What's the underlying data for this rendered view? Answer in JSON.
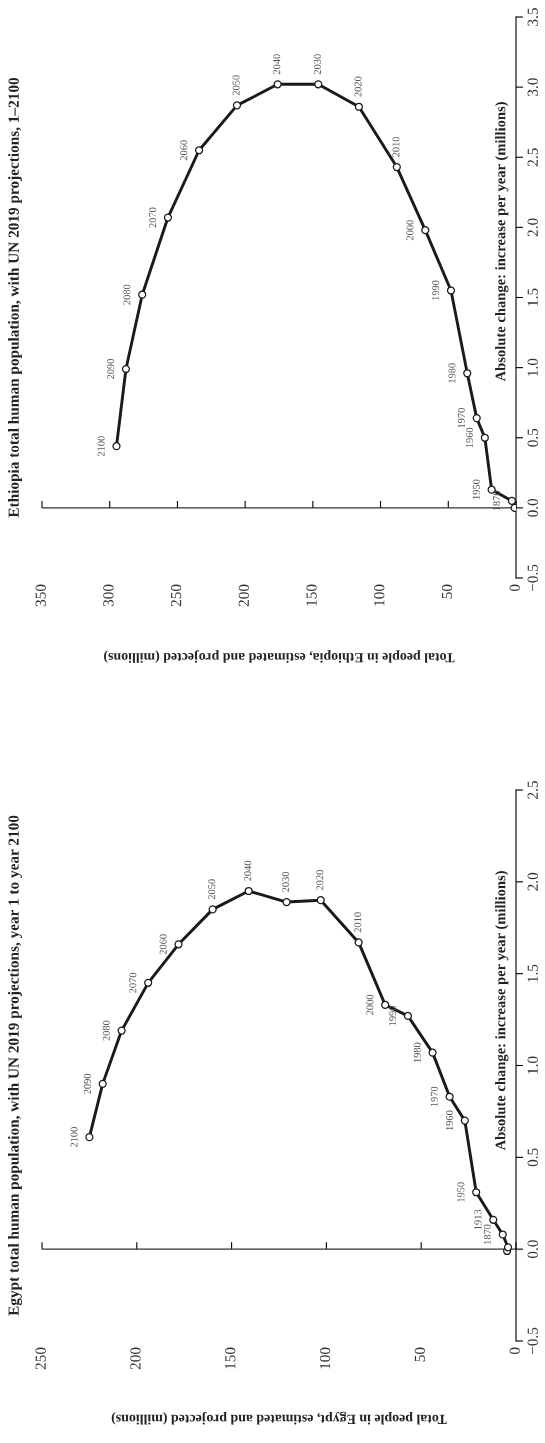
{
  "chart_data": [
    {
      "type": "line",
      "title": "Ethiopia total human population, with UN 2019 projections, 1–2100",
      "xlabel": "Total people in Ethiopia, estimated and projected (millions)",
      "ylabel": "Absolute change: increase per year (millions)",
      "x": [
        1,
        3,
        18,
        23,
        29,
        36,
        48,
        67,
        88,
        116,
        146,
        176,
        206,
        234,
        257,
        276,
        288,
        295
      ],
      "values": [
        0.0,
        0.05,
        0.13,
        0.5,
        0.64,
        0.96,
        1.55,
        1.98,
        2.43,
        2.86,
        3.02,
        3.02,
        2.87,
        2.55,
        2.07,
        1.52,
        0.99,
        0.44
      ],
      "color": "#1a1a1a",
      "marker": "circle",
      "grid": false,
      "legend": false,
      "ylim": [
        -0.5,
        3.5
      ],
      "yticks": [
        {
          "value": -0.5,
          "label": "−0.5"
        },
        {
          "value": 0,
          "label": "0.0"
        },
        {
          "value": 0.5,
          "label": "0.5"
        },
        {
          "value": 1,
          "label": "1.0"
        },
        {
          "value": 1.5,
          "label": "1.5"
        },
        {
          "value": 2,
          "label": "2.0"
        },
        {
          "value": 2.5,
          "label": "2.5"
        },
        {
          "value": 3,
          "label": "3.0"
        },
        {
          "value": 3.5,
          "label": "3.5"
        }
      ],
      "xlim": [
        350,
        0
      ],
      "xticks": [
        0,
        50,
        100,
        150,
        200,
        250,
        300,
        350
      ],
      "ref_lines": [
        {
          "axis": "y",
          "value": 0,
          "color": "#333333",
          "line_style": "solid"
        }
      ],
      "annotations": [
        {
          "text": "1870",
          "x": 3,
          "y": 0.05
        },
        {
          "text": "1950",
          "x": 18,
          "y": 0.13
        },
        {
          "text": "1960",
          "x": 23,
          "y": 0.5
        },
        {
          "text": "1970",
          "x": 29,
          "y": 0.64
        },
        {
          "text": "1980",
          "x": 36,
          "y": 0.96
        },
        {
          "text": "1990",
          "x": 48,
          "y": 1.55
        },
        {
          "text": "2000",
          "x": 67,
          "y": 1.98
        },
        {
          "text": "2010",
          "x": 88,
          "y": 2.43
        },
        {
          "text": "2020",
          "x": 116,
          "y": 2.86
        },
        {
          "text": "2030",
          "x": 146,
          "y": 3.02
        },
        {
          "text": "2040",
          "x": 176,
          "y": 3.02
        },
        {
          "text": "2050",
          "x": 206,
          "y": 2.87
        },
        {
          "text": "2060",
          "x": 234,
          "y": 2.55
        },
        {
          "text": "2070",
          "x": 257,
          "y": 2.07
        },
        {
          "text": "2080",
          "x": 276,
          "y": 1.52
        },
        {
          "text": "2090",
          "x": 288,
          "y": 0.99
        },
        {
          "text": "2100",
          "x": 295,
          "y": 0.44
        }
      ]
    },
    {
      "type": "line",
      "title": "Egypt total human population, with UN 2019 projections, year 1 to year 2100",
      "xlabel": "Total people in Egypt, estimated and projected (millions)",
      "ylabel": "Absolute change: increase per year (millions)",
      "x": [
        4.7,
        4.2,
        7,
        12,
        21,
        27,
        35,
        44,
        57,
        69,
        83,
        103,
        121,
        141,
        160,
        178,
        194,
        208,
        218,
        225
      ],
      "values": [
        -0.01,
        0.01,
        0.08,
        0.16,
        0.31,
        0.7,
        0.83,
        1.07,
        1.27,
        1.33,
        1.67,
        1.9,
        1.89,
        1.95,
        1.85,
        1.66,
        1.45,
        1.19,
        0.9,
        0.61
      ],
      "color": "#1a1a1a",
      "marker": "circle",
      "grid": false,
      "legend": false,
      "ylim": [
        -0.5,
        2.5
      ],
      "yticks": [
        {
          "value": -0.5,
          "label": "−0.5"
        },
        {
          "value": 0,
          "label": "0.0"
        },
        {
          "value": 0.5,
          "label": "0.5"
        },
        {
          "value": 1,
          "label": "1.0"
        },
        {
          "value": 1.5,
          "label": "1.5"
        },
        {
          "value": 2,
          "label": "2.0"
        },
        {
          "value": 2.5,
          "label": "2.5"
        }
      ],
      "xlim": [
        250,
        0
      ],
      "xticks": [
        0,
        50,
        100,
        150,
        200,
        250
      ],
      "ref_lines": [
        {
          "axis": "y",
          "value": 0,
          "color": "#333333",
          "line_style": "solid"
        }
      ],
      "annotations": [
        {
          "text": "1870",
          "x": 7,
          "y": 0.08
        },
        {
          "text": "1913",
          "x": 12,
          "y": 0.16
        },
        {
          "text": "1950",
          "x": 21,
          "y": 0.31
        },
        {
          "text": "1960",
          "x": 27,
          "y": 0.7
        },
        {
          "text": "1970",
          "x": 35,
          "y": 0.83
        },
        {
          "text": "1980",
          "x": 44,
          "y": 1.07
        },
        {
          "text": "1990",
          "x": 57,
          "y": 1.27
        },
        {
          "text": "2000",
          "x": 69,
          "y": 1.33
        },
        {
          "text": "2010",
          "x": 83,
          "y": 1.67
        },
        {
          "text": "2020",
          "x": 103,
          "y": 1.9
        },
        {
          "text": "2030",
          "x": 121,
          "y": 1.89
        },
        {
          "text": "2040",
          "x": 141,
          "y": 1.95
        },
        {
          "text": "2050",
          "x": 160,
          "y": 1.85
        },
        {
          "text": "2060",
          "x": 178,
          "y": 1.66
        },
        {
          "text": "2070",
          "x": 194,
          "y": 1.45
        },
        {
          "text": "2080",
          "x": 208,
          "y": 1.19
        },
        {
          "text": "2090",
          "x": 218,
          "y": 0.9
        },
        {
          "text": "2100",
          "x": 225,
          "y": 0.61
        }
      ]
    }
  ]
}
